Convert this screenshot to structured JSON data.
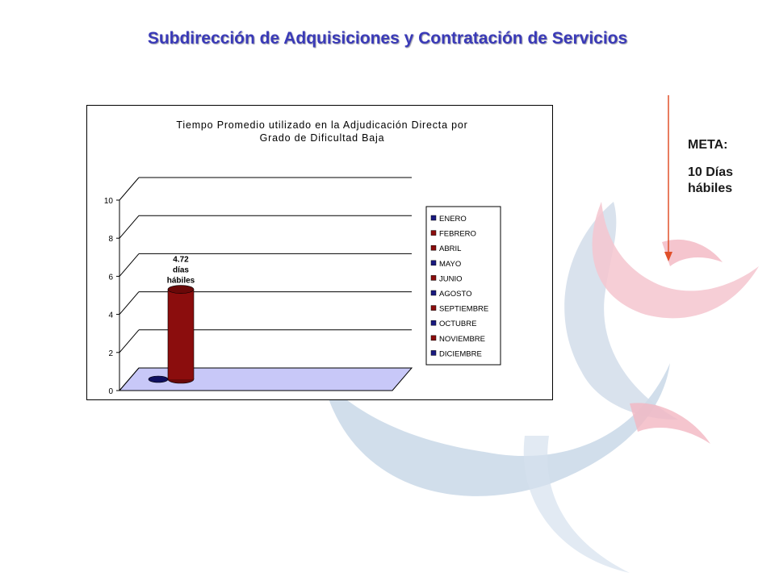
{
  "slide": {
    "title": "Subdirección de Adquisiciones y Contratación de Servicios"
  },
  "goal": {
    "label": "META:",
    "value": "10 Días hábiles",
    "arrow_color": "#e0502a"
  },
  "colors": {
    "title": "#3a3ab8",
    "floor": "#c8c8f8",
    "bar": "#8b0d0d",
    "dark_blue": "#1a1a80"
  },
  "chart_data": {
    "type": "bar",
    "title": "Tiempo Promedio utilizado en la Adjudicación Directa por Grado de Dificultad Baja",
    "ylim": [
      0,
      10
    ],
    "yticks": [
      0,
      2,
      4,
      6,
      8,
      10
    ],
    "grid": true,
    "legend_position": "right",
    "series": [
      {
        "name": "ENERO",
        "color": "#1a1a80",
        "value": 0
      },
      {
        "name": "FEBRERO",
        "color": "#8b0d0d",
        "value": 4.72,
        "data_label": "4.72 días hábiles"
      },
      {
        "name": "ABRIL",
        "color": "#8b0d0d"
      },
      {
        "name": "MAYO",
        "color": "#1a1a80"
      },
      {
        "name": "JUNIO",
        "color": "#8b0d0d"
      },
      {
        "name": "AGOSTO",
        "color": "#1a1a80"
      },
      {
        "name": "SEPTIEMBRE",
        "color": "#8b0d0d"
      },
      {
        "name": "OCTUBRE",
        "color": "#1a1a80"
      },
      {
        "name": "NOVIEMBRE",
        "color": "#8b0d0d"
      },
      {
        "name": "DICIEMBRE",
        "color": "#1a1a80"
      }
    ]
  }
}
